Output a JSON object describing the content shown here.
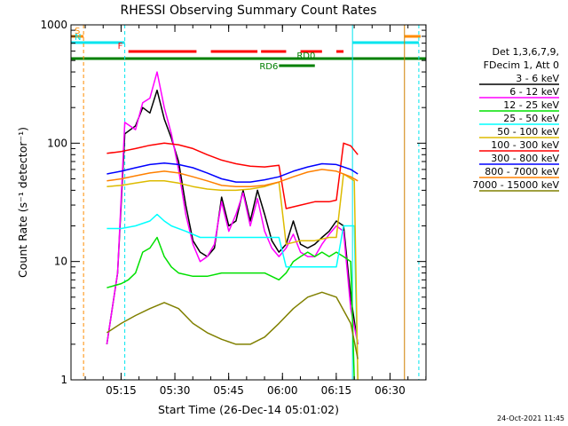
{
  "chart_data": {
    "type": "line",
    "title": "RHESSI Observing Summary Count Rates",
    "xlabel": "Start Time (26-Dec-14 05:01:02)",
    "ylabel": "Count Rate (s⁻¹ detector⁻¹)",
    "ylog": true,
    "ylim": [
      1,
      1000
    ],
    "xlim_minutes": [
      0,
      99
    ],
    "x_ticks": [
      "05:15",
      "05:30",
      "05:45",
      "06:00",
      "06:15",
      "06:30"
    ],
    "x_tick_minutes": [
      13.97,
      28.97,
      43.97,
      58.97,
      73.97,
      88.97
    ],
    "y_ticks": [
      "1",
      "10",
      "100",
      "1000"
    ],
    "y_tick_values": [
      1,
      10,
      100,
      1000
    ],
    "legend": {
      "position": "right",
      "header": [
        "Det 1,3,6,7,9,",
        "FDecim 1, Att 0"
      ]
    },
    "flags": [
      {
        "label": "S",
        "color": "#ff8c00",
        "level": 1
      },
      {
        "label": "N",
        "color": "#00e5ee",
        "level": 2
      },
      {
        "label": "F",
        "color": "#ff0000",
        "level": 3
      },
      {
        "label": "",
        "color": "#008000",
        "level": 4
      },
      {
        "label": "RD0",
        "color": "#008000",
        "level": 5
      },
      {
        "label": "RD6",
        "color": "#008000",
        "level": 6
      }
    ],
    "series": [
      {
        "name": "3 - 6 keV",
        "color": "#000000",
        "values": [
          [
            10,
            2
          ],
          [
            13,
            8
          ],
          [
            15,
            120
          ],
          [
            18,
            140
          ],
          [
            20,
            200
          ],
          [
            22,
            180
          ],
          [
            24,
            280
          ],
          [
            26,
            160
          ],
          [
            28,
            110
          ],
          [
            30,
            70
          ],
          [
            32,
            30
          ],
          [
            34,
            15
          ],
          [
            36,
            12
          ],
          [
            38,
            11
          ],
          [
            40,
            13
          ],
          [
            42,
            35
          ],
          [
            44,
            20
          ],
          [
            46,
            22
          ],
          [
            48,
            40
          ],
          [
            50,
            22
          ],
          [
            52,
            40
          ],
          [
            54,
            25
          ],
          [
            56,
            15
          ],
          [
            58,
            12
          ],
          [
            60,
            14
          ],
          [
            62,
            22
          ],
          [
            64,
            14
          ],
          [
            66,
            13
          ],
          [
            68,
            14
          ],
          [
            70,
            16
          ],
          [
            72,
            18
          ],
          [
            74,
            22
          ],
          [
            76,
            20
          ],
          [
            78,
            5
          ],
          [
            80,
            2
          ]
        ]
      },
      {
        "name": "6 - 12 keV",
        "color": "#ff00ff",
        "values": [
          [
            10,
            2
          ],
          [
            13,
            8
          ],
          [
            15,
            150
          ],
          [
            18,
            130
          ],
          [
            20,
            220
          ],
          [
            22,
            240
          ],
          [
            24,
            400
          ],
          [
            26,
            200
          ],
          [
            28,
            120
          ],
          [
            30,
            60
          ],
          [
            32,
            25
          ],
          [
            34,
            14
          ],
          [
            36,
            10
          ],
          [
            38,
            11
          ],
          [
            40,
            14
          ],
          [
            42,
            32
          ],
          [
            44,
            18
          ],
          [
            46,
            25
          ],
          [
            48,
            38
          ],
          [
            50,
            20
          ],
          [
            52,
            34
          ],
          [
            54,
            18
          ],
          [
            56,
            13
          ],
          [
            58,
            11
          ],
          [
            60,
            13
          ],
          [
            62,
            17
          ],
          [
            64,
            12
          ],
          [
            66,
            11
          ],
          [
            68,
            11
          ],
          [
            70,
            14
          ],
          [
            72,
            17
          ],
          [
            74,
            20
          ],
          [
            76,
            18
          ],
          [
            78,
            4
          ],
          [
            80,
            2
          ]
        ]
      },
      {
        "name": "12 - 25 keV",
        "color": "#00e000",
        "values": [
          [
            10,
            6
          ],
          [
            14,
            6.5
          ],
          [
            16,
            7
          ],
          [
            18,
            8
          ],
          [
            20,
            12
          ],
          [
            22,
            13
          ],
          [
            24,
            16
          ],
          [
            26,
            11
          ],
          [
            28,
            9
          ],
          [
            30,
            8
          ],
          [
            34,
            7.5
          ],
          [
            38,
            7.5
          ],
          [
            42,
            8
          ],
          [
            46,
            8
          ],
          [
            50,
            8
          ],
          [
            54,
            8
          ],
          [
            58,
            7
          ],
          [
            60,
            8
          ],
          [
            62,
            10
          ],
          [
            64,
            11
          ],
          [
            66,
            12
          ],
          [
            68,
            11
          ],
          [
            70,
            12
          ],
          [
            72,
            11
          ],
          [
            74,
            12
          ],
          [
            76,
            11
          ],
          [
            78,
            10
          ],
          [
            79,
            1
          ]
        ]
      },
      {
        "name": "25 - 50 keV",
        "color": "#00ffff",
        "values": [
          [
            10,
            19
          ],
          [
            14,
            19
          ],
          [
            18,
            20
          ],
          [
            22,
            22
          ],
          [
            24,
            25
          ],
          [
            26,
            22
          ],
          [
            28,
            20
          ],
          [
            32,
            18
          ],
          [
            36,
            16
          ],
          [
            40,
            16
          ],
          [
            44,
            16
          ],
          [
            48,
            16
          ],
          [
            52,
            16
          ],
          [
            56,
            16
          ],
          [
            58,
            16
          ],
          [
            60,
            9
          ],
          [
            64,
            9
          ],
          [
            68,
            9
          ],
          [
            72,
            9
          ],
          [
            74,
            9
          ],
          [
            76,
            20
          ],
          [
            79,
            20
          ],
          [
            80,
            1
          ]
        ]
      },
      {
        "name": "50 - 100 keV",
        "color": "#ddbb00",
        "values": [
          [
            10,
            43
          ],
          [
            14,
            44
          ],
          [
            18,
            46
          ],
          [
            22,
            48
          ],
          [
            26,
            48
          ],
          [
            30,
            46
          ],
          [
            34,
            43
          ],
          [
            38,
            41
          ],
          [
            42,
            40
          ],
          [
            46,
            40
          ],
          [
            50,
            41
          ],
          [
            54,
            43
          ],
          [
            58,
            47
          ],
          [
            60,
            14
          ],
          [
            64,
            15
          ],
          [
            68,
            15
          ],
          [
            72,
            16
          ],
          [
            74,
            16
          ],
          [
            76,
            55
          ],
          [
            79,
            48
          ],
          [
            80,
            1
          ]
        ]
      },
      {
        "name": "100 - 300 keV",
        "color": "#ff0000",
        "values": [
          [
            10,
            82
          ],
          [
            14,
            85
          ],
          [
            18,
            90
          ],
          [
            22,
            96
          ],
          [
            26,
            100
          ],
          [
            30,
            97
          ],
          [
            34,
            90
          ],
          [
            38,
            80
          ],
          [
            42,
            72
          ],
          [
            46,
            67
          ],
          [
            50,
            64
          ],
          [
            54,
            63
          ],
          [
            58,
            65
          ],
          [
            60,
            28
          ],
          [
            64,
            30
          ],
          [
            68,
            32
          ],
          [
            72,
            32
          ],
          [
            74,
            33
          ],
          [
            76,
            100
          ],
          [
            78,
            95
          ],
          [
            80,
            80
          ]
        ]
      },
      {
        "name": "300 - 800 keV",
        "color": "#0000ff",
        "values": [
          [
            10,
            55
          ],
          [
            14,
            58
          ],
          [
            18,
            62
          ],
          [
            22,
            66
          ],
          [
            26,
            68
          ],
          [
            30,
            66
          ],
          [
            34,
            62
          ],
          [
            38,
            56
          ],
          [
            42,
            50
          ],
          [
            46,
            47
          ],
          [
            50,
            47
          ],
          [
            54,
            49
          ],
          [
            58,
            52
          ],
          [
            62,
            58
          ],
          [
            66,
            63
          ],
          [
            70,
            67
          ],
          [
            74,
            66
          ],
          [
            78,
            60
          ],
          [
            80,
            55
          ]
        ]
      },
      {
        "name": "800 - 7000 keV",
        "color": "#ff8000",
        "values": [
          [
            10,
            48
          ],
          [
            14,
            50
          ],
          [
            18,
            53
          ],
          [
            22,
            56
          ],
          [
            26,
            58
          ],
          [
            30,
            56
          ],
          [
            34,
            52
          ],
          [
            38,
            48
          ],
          [
            42,
            44
          ],
          [
            46,
            43
          ],
          [
            50,
            43
          ],
          [
            54,
            44
          ],
          [
            58,
            47
          ],
          [
            62,
            52
          ],
          [
            66,
            57
          ],
          [
            70,
            60
          ],
          [
            74,
            58
          ],
          [
            78,
            52
          ],
          [
            80,
            48
          ]
        ]
      },
      {
        "name": "7000 - 15000 keV",
        "color": "#808000",
        "values": [
          [
            10,
            2.5
          ],
          [
            14,
            3
          ],
          [
            18,
            3.5
          ],
          [
            22,
            4
          ],
          [
            26,
            4.5
          ],
          [
            30,
            4
          ],
          [
            34,
            3
          ],
          [
            38,
            2.5
          ],
          [
            42,
            2.2
          ],
          [
            46,
            2
          ],
          [
            50,
            2
          ],
          [
            54,
            2.3
          ],
          [
            58,
            3
          ],
          [
            62,
            4
          ],
          [
            66,
            5
          ],
          [
            70,
            5.5
          ],
          [
            74,
            5
          ],
          [
            78,
            3
          ],
          [
            80,
            1.5
          ]
        ]
      }
    ]
  },
  "footer": {
    "timestamp": "24-Oct-2021 11:45"
  }
}
